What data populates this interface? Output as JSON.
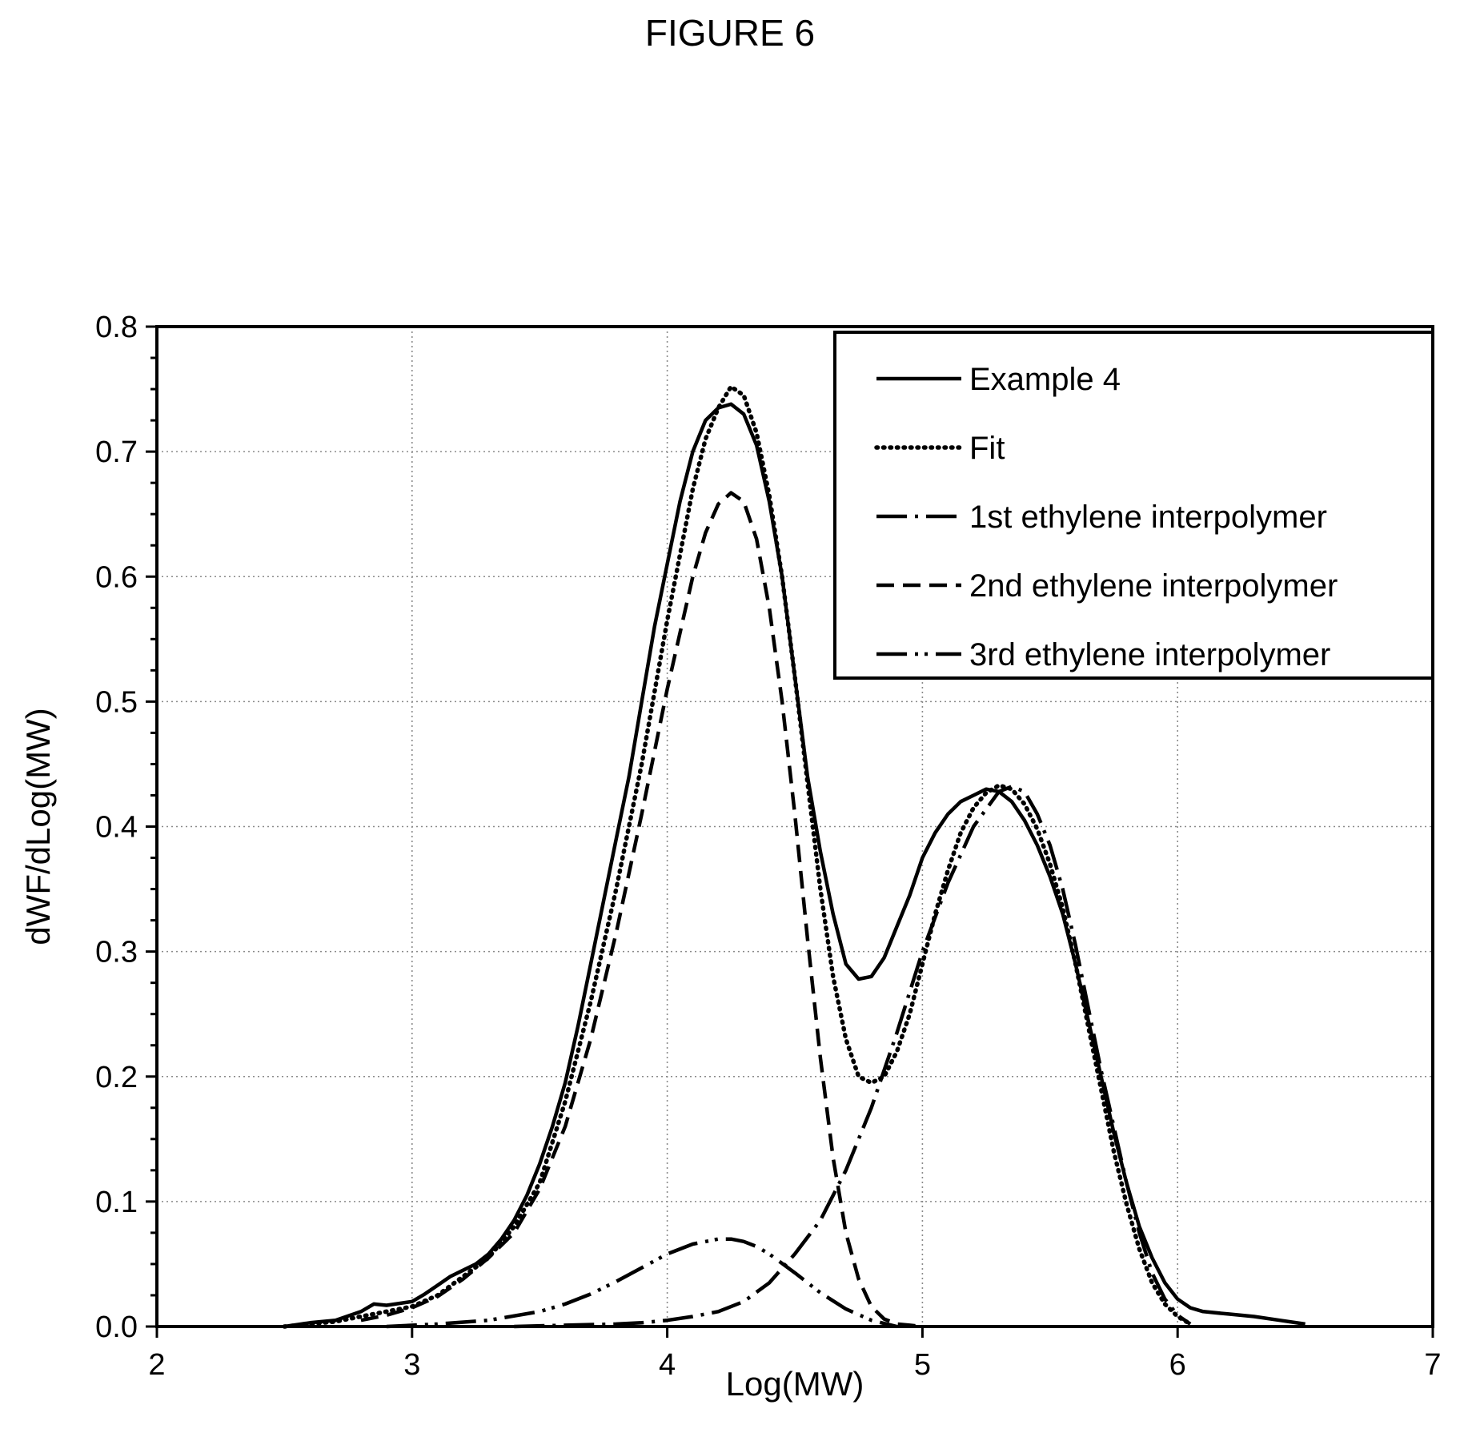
{
  "figure_title": "FIGURE 6",
  "chart_data": {
    "type": "line",
    "title": "FIGURE 6",
    "xlabel": "Log(MW)",
    "ylabel": "dWF/dLog(MW)",
    "xlim": [
      2,
      7
    ],
    "ylim": [
      0,
      0.8
    ],
    "xticks": [
      "2",
      "3",
      "4",
      "5",
      "6",
      "7"
    ],
    "yticks": [
      "0.0",
      "0.1",
      "0.2",
      "0.3",
      "0.4",
      "0.5",
      "0.6",
      "0.7",
      "0.8"
    ],
    "grid": true,
    "grid_style": "dotted",
    "legend_position": "top-right",
    "series": [
      {
        "name": "Example 4",
        "line_style": "solid",
        "color": "#000000",
        "x": [
          2.5,
          2.6,
          2.7,
          2.8,
          2.85,
          2.9,
          3.0,
          3.05,
          3.1,
          3.15,
          3.2,
          3.25,
          3.3,
          3.35,
          3.4,
          3.45,
          3.5,
          3.55,
          3.6,
          3.65,
          3.7,
          3.75,
          3.8,
          3.85,
          3.9,
          3.95,
          4.0,
          4.05,
          4.1,
          4.15,
          4.2,
          4.25,
          4.3,
          4.35,
          4.4,
          4.45,
          4.5,
          4.55,
          4.6,
          4.65,
          4.7,
          4.75,
          4.8,
          4.85,
          4.9,
          4.95,
          5.0,
          5.05,
          5.1,
          5.15,
          5.2,
          5.25,
          5.3,
          5.35,
          5.4,
          5.45,
          5.5,
          5.55,
          5.6,
          5.65,
          5.7,
          5.75,
          5.8,
          5.85,
          5.9,
          5.95,
          6.0,
          6.05,
          6.1,
          6.2,
          6.3,
          6.4,
          6.5
        ],
        "y": [
          0.0,
          0.003,
          0.005,
          0.012,
          0.018,
          0.017,
          0.02,
          0.026,
          0.033,
          0.04,
          0.045,
          0.05,
          0.058,
          0.07,
          0.085,
          0.105,
          0.13,
          0.16,
          0.195,
          0.24,
          0.29,
          0.34,
          0.39,
          0.44,
          0.5,
          0.56,
          0.61,
          0.66,
          0.7,
          0.725,
          0.735,
          0.738,
          0.73,
          0.705,
          0.66,
          0.6,
          0.52,
          0.44,
          0.38,
          0.33,
          0.29,
          0.278,
          0.28,
          0.295,
          0.32,
          0.345,
          0.375,
          0.395,
          0.41,
          0.42,
          0.425,
          0.43,
          0.428,
          0.42,
          0.405,
          0.385,
          0.36,
          0.33,
          0.29,
          0.245,
          0.2,
          0.155,
          0.115,
          0.08,
          0.055,
          0.035,
          0.022,
          0.015,
          0.012,
          0.01,
          0.008,
          0.005,
          0.002
        ]
      },
      {
        "name": "Fit",
        "line_style": "dotted",
        "color": "#000000",
        "x": [
          2.5,
          2.6,
          2.7,
          2.8,
          2.9,
          3.0,
          3.1,
          3.2,
          3.3,
          3.4,
          3.5,
          3.6,
          3.7,
          3.8,
          3.9,
          4.0,
          4.1,
          4.15,
          4.2,
          4.25,
          4.3,
          4.35,
          4.4,
          4.45,
          4.5,
          4.55,
          4.6,
          4.65,
          4.7,
          4.75,
          4.8,
          4.85,
          4.9,
          4.95,
          5.0,
          5.05,
          5.1,
          5.15,
          5.2,
          5.25,
          5.3,
          5.35,
          5.4,
          5.45,
          5.5,
          5.55,
          5.6,
          5.65,
          5.7,
          5.75,
          5.8,
          5.85,
          5.9,
          5.95,
          6.0,
          6.05
        ],
        "y": [
          0.0,
          0.002,
          0.004,
          0.008,
          0.012,
          0.016,
          0.025,
          0.04,
          0.055,
          0.08,
          0.115,
          0.18,
          0.26,
          0.35,
          0.45,
          0.565,
          0.67,
          0.71,
          0.735,
          0.752,
          0.745,
          0.715,
          0.665,
          0.6,
          0.52,
          0.435,
          0.35,
          0.28,
          0.23,
          0.2,
          0.195,
          0.2,
          0.22,
          0.25,
          0.29,
          0.33,
          0.365,
          0.395,
          0.415,
          0.427,
          0.433,
          0.43,
          0.418,
          0.398,
          0.37,
          0.335,
          0.29,
          0.24,
          0.19,
          0.14,
          0.098,
          0.062,
          0.035,
          0.018,
          0.008,
          0.002
        ]
      },
      {
        "name": "1st ethylene interpolymer",
        "line_style": "dashdot",
        "color": "#000000",
        "x": [
          3.4,
          3.6,
          3.8,
          3.9,
          4.0,
          4.1,
          4.2,
          4.3,
          4.4,
          4.5,
          4.6,
          4.7,
          4.8,
          4.9,
          5.0,
          5.1,
          5.2,
          5.3,
          5.35,
          5.4,
          5.45,
          5.5,
          5.55,
          5.6,
          5.65,
          5.7,
          5.75,
          5.8,
          5.85,
          5.9,
          5.95,
          6.0,
          6.05
        ],
        "y": [
          0.0,
          0.001,
          0.002,
          0.003,
          0.005,
          0.008,
          0.012,
          0.02,
          0.035,
          0.058,
          0.085,
          0.125,
          0.175,
          0.235,
          0.3,
          0.355,
          0.4,
          0.428,
          0.432,
          0.428,
          0.41,
          0.385,
          0.35,
          0.305,
          0.255,
          0.205,
          0.16,
          0.115,
          0.075,
          0.043,
          0.022,
          0.009,
          0.002
        ]
      },
      {
        "name": "2nd ethylene interpolymer",
        "line_style": "dashed",
        "color": "#000000",
        "x": [
          2.8,
          2.9,
          3.0,
          3.1,
          3.2,
          3.3,
          3.4,
          3.5,
          3.6,
          3.7,
          3.8,
          3.9,
          4.0,
          4.1,
          4.15,
          4.2,
          4.25,
          4.3,
          4.35,
          4.4,
          4.45,
          4.5,
          4.55,
          4.6,
          4.65,
          4.7,
          4.75,
          4.8,
          4.85,
          4.9,
          4.95,
          5.0
        ],
        "y": [
          0.005,
          0.009,
          0.015,
          0.024,
          0.038,
          0.055,
          0.075,
          0.11,
          0.16,
          0.23,
          0.315,
          0.41,
          0.51,
          0.6,
          0.635,
          0.658,
          0.667,
          0.66,
          0.63,
          0.575,
          0.5,
          0.41,
          0.31,
          0.215,
          0.135,
          0.075,
          0.038,
          0.016,
          0.006,
          0.002,
          0.001,
          0.0
        ]
      },
      {
        "name": "3rd ethylene interpolymer",
        "line_style": "dashdotdot",
        "color": "#000000",
        "x": [
          2.9,
          3.1,
          3.3,
          3.5,
          3.6,
          3.7,
          3.8,
          3.9,
          4.0,
          4.1,
          4.2,
          4.25,
          4.3,
          4.35,
          4.4,
          4.5,
          4.6,
          4.7,
          4.8,
          4.9
        ],
        "y": [
          0.0,
          0.002,
          0.005,
          0.012,
          0.018,
          0.026,
          0.036,
          0.047,
          0.058,
          0.066,
          0.07,
          0.07,
          0.068,
          0.064,
          0.058,
          0.043,
          0.027,
          0.014,
          0.005,
          0.0
        ]
      }
    ]
  }
}
